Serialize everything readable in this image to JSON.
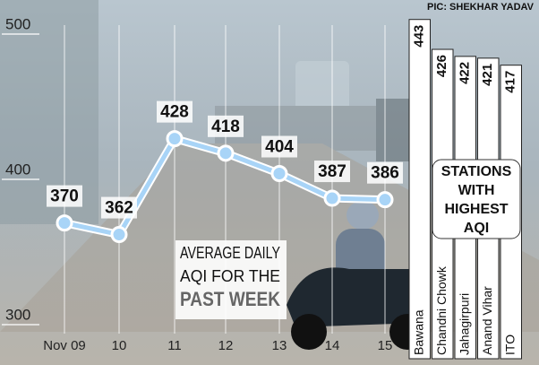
{
  "credit": "PIC: SHEKHAR YADAV",
  "chart_data": [
    {
      "type": "line",
      "title_lines": [
        "AVERAGE DAILY",
        "AQI FOR THE",
        "PAST WEEK"
      ],
      "categories": [
        "Nov 09",
        "10",
        "11",
        "12",
        "13",
        "14",
        "15"
      ],
      "values": [
        370,
        362,
        428,
        418,
        404,
        387,
        386
      ],
      "color": "#a8d4f7",
      "ylim": [
        300,
        500
      ],
      "yticks": [
        300,
        400,
        500
      ],
      "grid": true
    },
    {
      "type": "bar",
      "title_lines": [
        "STATIONS",
        "WITH",
        "HIGHEST",
        "AQI"
      ],
      "categories": [
        "Bawana",
        "Chandni Chowk",
        "Jahagirpuri",
        "Anand Vihar",
        "ITO"
      ],
      "values": [
        443,
        426,
        422,
        421,
        417
      ],
      "color": "#ffffff",
      "ylim": [
        250,
        450
      ]
    }
  ]
}
